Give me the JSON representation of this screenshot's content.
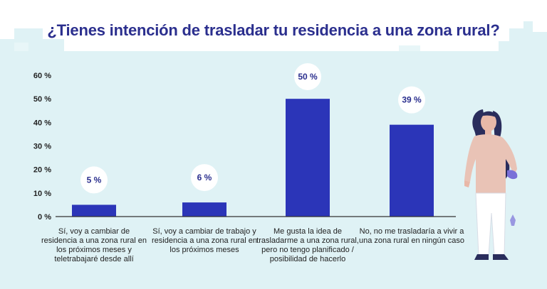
{
  "title": "¿Tienes intención de trasladar tu residencia a una zona rural?",
  "chart_data": {
    "type": "bar",
    "categories": [
      "Sí, voy a cambiar de residencia a una zona rural en los próximos meses y teletrabajaré desde allí",
      "Sí, voy a cambiar de trabajo y residencia a una zona rural en los próximos meses",
      "Me gusta la idea de trasladarme a una zona rural, pero no tengo planificado / posibilidad de hacerlo",
      "No, no me trasladaría a vivir a una zona rural en ningún caso"
    ],
    "values": [
      5,
      6,
      50,
      39
    ],
    "value_labels": [
      "5 %",
      "6 %",
      "50 %",
      "39 %"
    ],
    "yticks": [
      0,
      10,
      20,
      30,
      40,
      50,
      60
    ],
    "ytick_labels": [
      "0 %",
      "10 %",
      "20 %",
      "30 %",
      "40 %",
      "50 %",
      "60 %"
    ],
    "ylim": [
      0,
      60
    ],
    "title": "¿Tienes intención de trasladar tu residencia a una zona rural?",
    "xlabel": "",
    "ylabel": "",
    "grid": false
  },
  "colors": {
    "bar": "#2b35b8",
    "background_skyline": "#dff2f5",
    "title": "#2b2f8e",
    "axis": "#333333"
  },
  "decoration": {
    "figure": "woman-illustration-icon",
    "background": "city-skyline-icon"
  }
}
